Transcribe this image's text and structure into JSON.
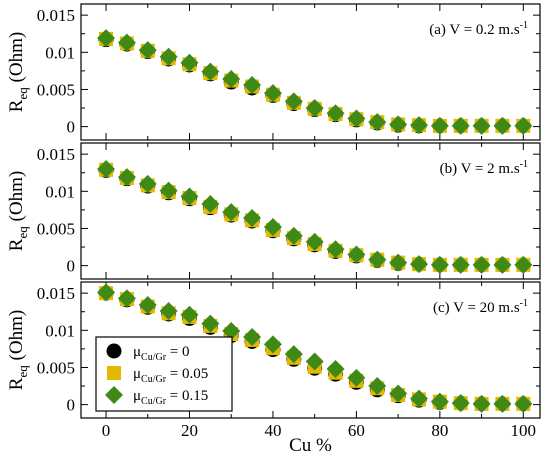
{
  "chart_data": [
    {
      "type": "scatter",
      "panel_label": "(a) V = 0.2 m.s",
      "panel_label_sup": "-1",
      "ylabel": "R",
      "ylabel_sub": "eq",
      "ylabel_unit": " (Ohm)",
      "ylim": [
        -0.0018,
        0.0165
      ],
      "yticks": [
        0,
        0.005,
        0.01,
        0.015
      ],
      "ytick_labels": [
        "0",
        "0.005",
        "0.01",
        "0.015"
      ],
      "xlim": [
        -6,
        104
      ],
      "xticks": [
        0,
        20,
        40,
        60,
        80,
        100
      ],
      "x": [
        0,
        5,
        10,
        15,
        20,
        25,
        30,
        35,
        40,
        45,
        50,
        55,
        60,
        65,
        70,
        75,
        80,
        85,
        90,
        95,
        100
      ],
      "series": [
        {
          "values": [
            0.0117,
            0.0111,
            0.0101,
            0.0091,
            0.0083,
            0.0071,
            0.006,
            0.0052,
            0.0042,
            0.0031,
            0.0023,
            0.0016,
            0.0009,
            0.0005,
            0.0002,
            0.0001,
            0.0001,
            0.0001,
            0.0001,
            0.0001,
            0.0001
          ]
        },
        {
          "values": [
            0.0118,
            0.0112,
            0.0102,
            0.0092,
            0.0084,
            0.0072,
            0.0062,
            0.0054,
            0.0043,
            0.0032,
            0.0024,
            0.0017,
            0.001,
            0.0006,
            0.0003,
            0.0002,
            0.0001,
            0.0001,
            0.0001,
            0.0001,
            0.0001
          ]
        },
        {
          "values": [
            0.0119,
            0.0113,
            0.0103,
            0.0094,
            0.0086,
            0.0074,
            0.0064,
            0.0056,
            0.0045,
            0.0034,
            0.0025,
            0.0018,
            0.0011,
            0.0006,
            0.0003,
            0.0002,
            0.0001,
            0.0001,
            0.0001,
            0.0001,
            0.0001
          ]
        }
      ]
    },
    {
      "type": "scatter",
      "panel_label": "(b) V = 2 m.s",
      "panel_label_sup": "-1",
      "ylabel": "R",
      "ylabel_sub": "eq",
      "ylabel_unit": " (Ohm)",
      "ylim": [
        -0.0018,
        0.0165
      ],
      "yticks": [
        0,
        0.005,
        0.01,
        0.015
      ],
      "ytick_labels": [
        "0",
        "0.005",
        "0.01",
        "0.015"
      ],
      "xlim": [
        -6,
        104
      ],
      "xticks": [
        0,
        20,
        40,
        60,
        80,
        100
      ],
      "x": [
        0,
        5,
        10,
        15,
        20,
        25,
        30,
        35,
        40,
        45,
        50,
        55,
        60,
        65,
        70,
        75,
        80,
        85,
        90,
        95,
        100
      ],
      "series": [
        {
          "values": [
            0.0128,
            0.0117,
            0.0107,
            0.0098,
            0.009,
            0.0078,
            0.0068,
            0.006,
            0.0047,
            0.0036,
            0.0028,
            0.0019,
            0.0013,
            0.0007,
            0.0003,
            0.0002,
            0.0001,
            0.0001,
            0.0001,
            0.0001,
            0.0001
          ]
        },
        {
          "values": [
            0.0129,
            0.0118,
            0.0108,
            0.0099,
            0.0091,
            0.0079,
            0.0069,
            0.0061,
            0.0048,
            0.0037,
            0.0029,
            0.002,
            0.0014,
            0.0008,
            0.0004,
            0.0002,
            0.0001,
            0.0001,
            0.0001,
            0.0001,
            0.0001
          ]
        },
        {
          "values": [
            0.013,
            0.0119,
            0.011,
            0.0101,
            0.0093,
            0.0083,
            0.0072,
            0.0064,
            0.0052,
            0.004,
            0.0032,
            0.0022,
            0.0015,
            0.0008,
            0.0004,
            0.0002,
            0.0001,
            0.0001,
            0.0001,
            0.0001,
            0.0001
          ]
        }
      ]
    },
    {
      "type": "scatter",
      "panel_label": "(c) V = 20 m.s",
      "panel_label_sup": "-1",
      "ylabel": "R",
      "ylabel_sub": "eq",
      "ylabel_unit": " (Ohm)",
      "xlabel": "Cu %",
      "ylim": [
        -0.0018,
        0.0165
      ],
      "yticks": [
        0,
        0.005,
        0.01,
        0.015
      ],
      "ytick_labels": [
        "0",
        "0.005",
        "0.01",
        "0.015"
      ],
      "xlim": [
        -6,
        104
      ],
      "xticks": [
        0,
        20,
        40,
        60,
        80,
        100
      ],
      "xtick_labels": [
        "0",
        "20",
        "40",
        "60",
        "80",
        "100"
      ],
      "x": [
        0,
        5,
        10,
        15,
        20,
        25,
        30,
        35,
        40,
        45,
        50,
        55,
        60,
        65,
        70,
        75,
        80,
        85,
        90,
        95,
        100
      ],
      "legend_position": "bottom-left",
      "series": [
        {
          "name": "μ",
          "name_sub": "Cu/Gr",
          "name_rest": " = 0",
          "marker": "circle",
          "color": "#000000",
          "values": [
            0.015,
            0.0141,
            0.0131,
            0.0122,
            0.0116,
            0.0104,
            0.0093,
            0.0085,
            0.0074,
            0.0061,
            0.0049,
            0.0041,
            0.003,
            0.002,
            0.0012,
            0.0006,
            0.0003,
            0.0002,
            0.0001,
            0.0001,
            0.0001
          ]
        },
        {
          "name": "μ",
          "name_sub": "Cu/Gr",
          "name_rest": " = 0.05",
          "marker": "square",
          "color": "#e3b900",
          "values": [
            0.015,
            0.0142,
            0.0132,
            0.0123,
            0.0118,
            0.0106,
            0.0095,
            0.0087,
            0.0076,
            0.0063,
            0.0051,
            0.0043,
            0.0032,
            0.0022,
            0.0013,
            0.0007,
            0.0004,
            0.0002,
            0.0001,
            0.0001,
            0.0001
          ]
        },
        {
          "name": "μ",
          "name_sub": "Cu/Gr",
          "name_rest": " = 0.15",
          "marker": "diamond",
          "color": "#3f8a16",
          "values": [
            0.0151,
            0.0143,
            0.0134,
            0.0126,
            0.0121,
            0.0109,
            0.0099,
            0.0091,
            0.0081,
            0.0068,
            0.0058,
            0.0048,
            0.0036,
            0.0025,
            0.0015,
            0.0008,
            0.0004,
            0.0002,
            0.0001,
            0.0001,
            0.0001
          ]
        }
      ]
    }
  ]
}
